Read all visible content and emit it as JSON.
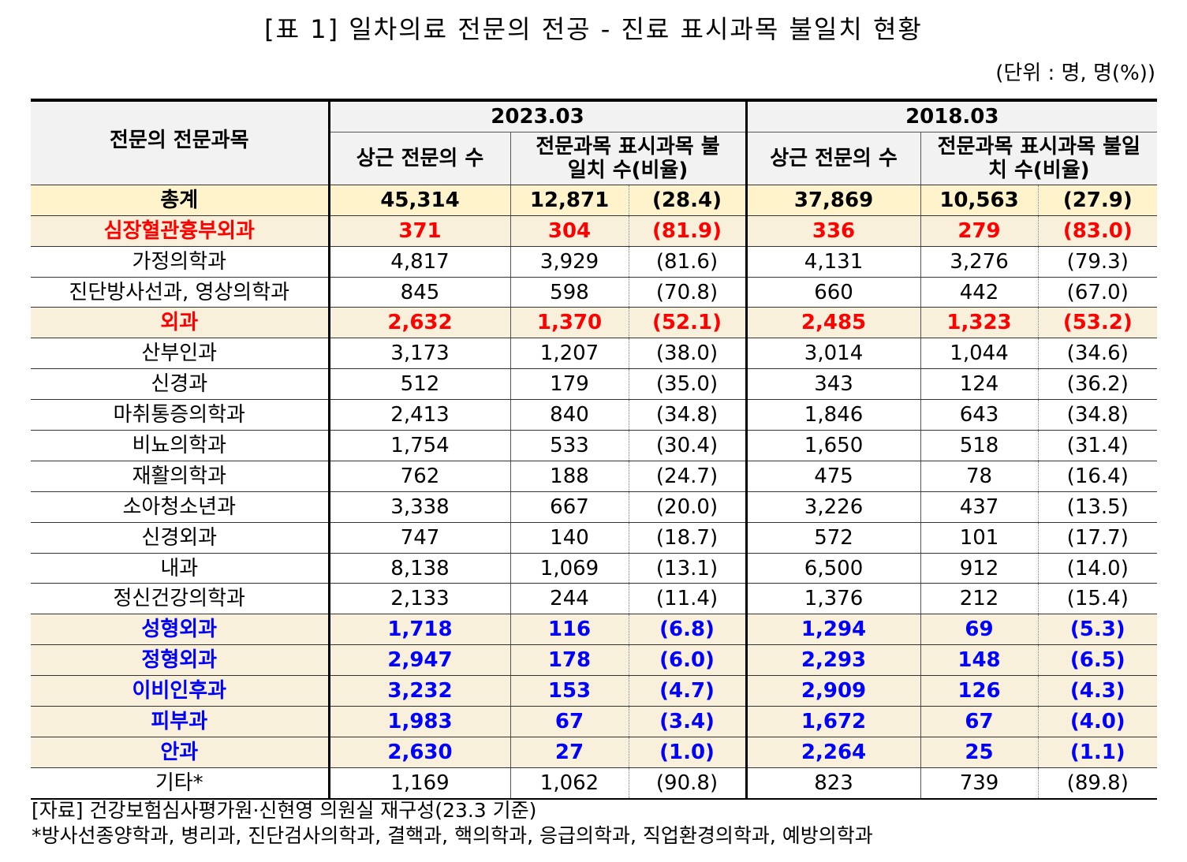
{
  "title": "[표 1] 일차의료 전문의 전공 - 진료 표시과목 불일치 현황",
  "unit": "(단위 : 명, 명(%))",
  "header": {
    "row_label": "전문의 전문과목",
    "period1": "2023.03",
    "period2": "2018.03",
    "col_count1": "상근 전문의 수",
    "col_mismatch1": "전문과목 표시과목 불일치 수(비율)",
    "col_count2": "상근 전문의 수",
    "col_mismatch2": "전문과목 표시과목 불일치 수(비율)"
  },
  "colors": {
    "red": "#ff0000",
    "blue": "#0000ff",
    "total_bg": "#fff3cc",
    "highlight_bg": "#f8f0da",
    "header_bg": "#f2f2f2"
  },
  "rows": [
    {
      "style": "total",
      "name": "총계",
      "v": [
        "45,314",
        "12,871",
        "(28.4)",
        "37,869",
        "10,563",
        "(27.9)"
      ]
    },
    {
      "style": "red",
      "name": "심장혈관흉부외과",
      "v": [
        "371",
        "304",
        "(81.9)",
        "336",
        "279",
        "(83.0)"
      ]
    },
    {
      "style": "normal",
      "name": "가정의학과",
      "v": [
        "4,817",
        "3,929",
        "(81.6)",
        "4,131",
        "3,276",
        "(79.3)"
      ]
    },
    {
      "style": "normal",
      "name": "진단방사선과, 영상의학과",
      "v": [
        "845",
        "598",
        "(70.8)",
        "660",
        "442",
        "(67.0)"
      ]
    },
    {
      "style": "red",
      "name": "외과",
      "v": [
        "2,632",
        "1,370",
        "(52.1)",
        "2,485",
        "1,323",
        "(53.2)"
      ]
    },
    {
      "style": "normal",
      "name": "산부인과",
      "v": [
        "3,173",
        "1,207",
        "(38.0)",
        "3,014",
        "1,044",
        "(34.6)"
      ]
    },
    {
      "style": "normal",
      "name": "신경과",
      "v": [
        "512",
        "179",
        "(35.0)",
        "343",
        "124",
        "(36.2)"
      ]
    },
    {
      "style": "normal",
      "name": "마취통증의학과",
      "v": [
        "2,413",
        "840",
        "(34.8)",
        "1,846",
        "643",
        "(34.8)"
      ]
    },
    {
      "style": "normal",
      "name": "비뇨의학과",
      "v": [
        "1,754",
        "533",
        "(30.4)",
        "1,650",
        "518",
        "(31.4)"
      ]
    },
    {
      "style": "normal",
      "name": "재활의학과",
      "v": [
        "762",
        "188",
        "(24.7)",
        "475",
        "78",
        "(16.4)"
      ]
    },
    {
      "style": "normal",
      "name": "소아청소년과",
      "v": [
        "3,338",
        "667",
        "(20.0)",
        "3,226",
        "437",
        "(13.5)"
      ]
    },
    {
      "style": "normal",
      "name": "신경외과",
      "v": [
        "747",
        "140",
        "(18.7)",
        "572",
        "101",
        "(17.7)"
      ]
    },
    {
      "style": "normal",
      "name": "내과",
      "v": [
        "8,138",
        "1,069",
        "(13.1)",
        "6,500",
        "912",
        "(14.0)"
      ]
    },
    {
      "style": "normal",
      "name": "정신건강의학과",
      "v": [
        "2,133",
        "244",
        "(11.4)",
        "1,376",
        "212",
        "(15.4)"
      ]
    },
    {
      "style": "blue",
      "name": "성형외과",
      "v": [
        "1,718",
        "116",
        "(6.8)",
        "1,294",
        "69",
        "(5.3)"
      ]
    },
    {
      "style": "blue",
      "name": "정형외과",
      "v": [
        "2,947",
        "178",
        "(6.0)",
        "2,293",
        "148",
        "(6.5)"
      ]
    },
    {
      "style": "blue",
      "name": "이비인후과",
      "v": [
        "3,232",
        "153",
        "(4.7)",
        "2,909",
        "126",
        "(4.3)"
      ]
    },
    {
      "style": "blue",
      "name": "피부과",
      "v": [
        "1,983",
        "67",
        "(3.4)",
        "1,672",
        "67",
        "(4.0)"
      ]
    },
    {
      "style": "blue",
      "name": "안과",
      "v": [
        "2,630",
        "27",
        "(1.0)",
        "2,264",
        "25",
        "(1.1)"
      ]
    },
    {
      "style": "normal",
      "name": "기타*",
      "v": [
        "1,169",
        "1,062",
        "(90.8)",
        "823",
        "739",
        "(89.8)"
      ]
    }
  ],
  "notes": [
    "[자료] 건강보험심사평가원·신현영 의원실 재구성(23.3 기준)",
    "*방사선종양학과, 병리과, 진단검사의학과, 결핵과, 핵의학과, 응급의학과, 직업환경의학과, 예방의학과"
  ]
}
